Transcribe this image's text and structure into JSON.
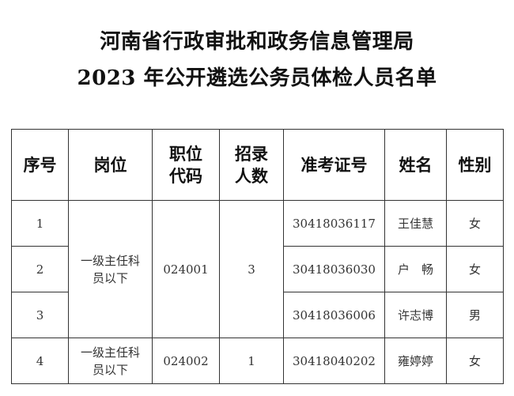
{
  "title": {
    "line1": "河南省行政审批和政务信息管理局",
    "line2": "2023 年公开遴选公务员体检人员名单"
  },
  "table": {
    "headers": [
      "序号",
      "岗位",
      "职位\n代码",
      "招录\n人数",
      "准考证号",
      "姓名",
      "性别"
    ],
    "header_lines": {
      "code1": "职位",
      "code2": "代码",
      "num1": "招录",
      "num2": "人数"
    },
    "groups": [
      {
        "position": "一级主任科员以下",
        "code": "024001",
        "quota": "3"
      },
      {
        "position": "一级主任科员以下",
        "code": "024002",
        "quota": "1"
      }
    ],
    "rows": [
      {
        "no": "1",
        "exam_id": "30418036117",
        "name": "王佳慧",
        "gender": "女"
      },
      {
        "no": "2",
        "exam_id": "30418036030",
        "name": "户　畅",
        "gender": "女"
      },
      {
        "no": "3",
        "exam_id": "30418036006",
        "name": "许志博",
        "gender": "男"
      },
      {
        "no": "4",
        "exam_id": "30418040202",
        "name": "雍婷婷",
        "gender": "女"
      }
    ]
  }
}
